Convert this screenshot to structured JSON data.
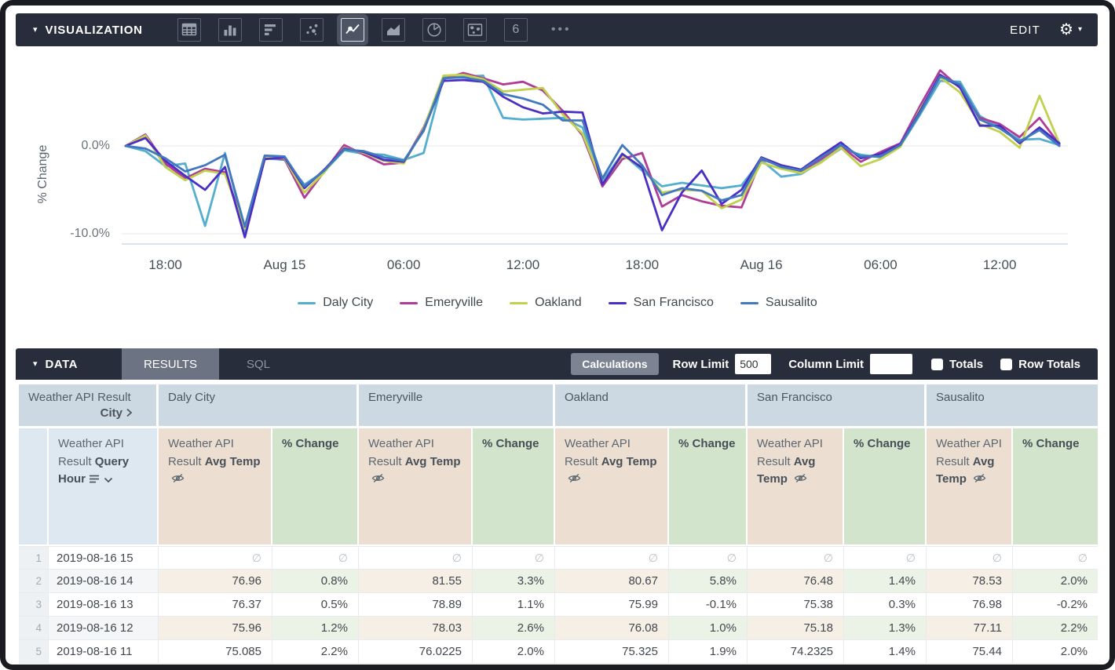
{
  "viz_bar": {
    "title": "VISUALIZATION",
    "caret_down_glyph": "▾",
    "more_glyph": "•••",
    "edit_label": "EDIT",
    "gear_glyph": "⚙",
    "single_value_text": "6",
    "icons": [
      {
        "name": "table"
      },
      {
        "name": "column-chart"
      },
      {
        "name": "bar-chart"
      },
      {
        "name": "scatter"
      },
      {
        "name": "line-chart",
        "selected": true
      },
      {
        "name": "area-chart"
      },
      {
        "name": "pie-chart"
      },
      {
        "name": "map"
      },
      {
        "name": "single-value"
      }
    ]
  },
  "chart_data": {
    "type": "line",
    "title": "",
    "xlabel": "",
    "ylabel": "% Change",
    "grid": "horizontal",
    "legend_position": "bottom",
    "ylim": [
      -12,
      9.5
    ],
    "y_ticks": [
      {
        "label": "0.0%",
        "value": 0
      },
      {
        "label": "-10.0%",
        "value": -10
      }
    ],
    "x_ticks": [
      {
        "label": "18:00",
        "i": 2
      },
      {
        "label": "Aug 15",
        "i": 8
      },
      {
        "label": "06:00",
        "i": 14
      },
      {
        "label": "12:00",
        "i": 20
      },
      {
        "label": "18:00",
        "i": 26
      },
      {
        "label": "Aug 16",
        "i": 32
      },
      {
        "label": "06:00",
        "i": 38
      },
      {
        "label": "12:00",
        "i": 44
      }
    ],
    "series": [
      {
        "name": "Daly City",
        "color": "#55AECE",
        "values": [
          0,
          -0.6,
          -2.3,
          -2.0,
          -9.1,
          -0.8,
          -9.8,
          -1.4,
          -1.6,
          -4.4,
          -2.9,
          -0.5,
          -0.9,
          -1.0,
          -1.6,
          -0.8,
          7.8,
          7.9,
          8.0,
          3.2,
          3.0,
          3.1,
          3.2,
          2.1,
          -4.0,
          -0.9,
          -2.8,
          -4.6,
          -4.2,
          -4.5,
          -4.8,
          -4.5,
          -1.6,
          -3.5,
          -3.2,
          -1.8,
          -0.3,
          -1.0,
          -1.3,
          0.0,
          3.6,
          7.4,
          7.3,
          3.4,
          2.1,
          0.7,
          0.8,
          0.1
        ]
      },
      {
        "name": "Emeryville",
        "color": "#AE3C98",
        "values": [
          0,
          1.3,
          -2.0,
          -3.7,
          -2.6,
          -3.0,
          -9.3,
          -1.3,
          -1.5,
          -5.9,
          -2.9,
          0.1,
          -1.0,
          -2.1,
          -1.9,
          2.1,
          7.6,
          8.3,
          7.7,
          7.0,
          7.3,
          6.3,
          4.0,
          1.2,
          -4.6,
          -1.5,
          -0.8,
          -6.9,
          -5.6,
          -6.3,
          -6.8,
          -7.0,
          -1.5,
          -2.3,
          -2.9,
          -1.5,
          0.0,
          -1.8,
          -0.7,
          0.3,
          4.6,
          8.6,
          6.6,
          3.2,
          2.5,
          1.0,
          3.2,
          0.2
        ]
      },
      {
        "name": "Oakland",
        "color": "#C0D14E",
        "values": [
          0,
          1.2,
          -2.4,
          -3.9,
          -2.8,
          -3.2,
          -9.4,
          -1.2,
          -1.4,
          -5.3,
          -3.0,
          -0.2,
          -0.8,
          -1.7,
          -2.0,
          2.0,
          8.0,
          8.1,
          7.6,
          6.2,
          6.4,
          6.6,
          3.6,
          1.4,
          -4.3,
          -1.1,
          -2.4,
          -5.3,
          -5.0,
          -5.1,
          -7.1,
          -6.1,
          -1.9,
          -2.6,
          -3.1,
          -1.9,
          -0.2,
          -2.3,
          -1.5,
          -0.1,
          4.2,
          7.8,
          6.1,
          2.5,
          1.6,
          -0.2,
          5.7,
          0.3
        ]
      },
      {
        "name": "San Francisco",
        "color": "#4B2FC4",
        "values": [
          0,
          0.9,
          -1.7,
          -3.4,
          -5.0,
          -2.4,
          -10.4,
          -1.5,
          -1.3,
          -4.8,
          -2.7,
          -0.3,
          -0.7,
          -1.6,
          -1.8,
          1.8,
          7.4,
          7.5,
          7.3,
          5.6,
          4.4,
          3.7,
          3.9,
          3.8,
          -4.4,
          -0.9,
          -2.5,
          -9.6,
          -5.3,
          -2.8,
          -6.6,
          -5.0,
          -1.3,
          -2.2,
          -2.7,
          -1.1,
          0.4,
          -1.4,
          -0.9,
          0.2,
          4.0,
          8.1,
          6.7,
          2.3,
          2.3,
          0.3,
          2.1,
          0.3
        ]
      },
      {
        "name": "Sausalito",
        "color": "#4278BE",
        "values": [
          0,
          -0.3,
          -1.4,
          -2.9,
          -2.2,
          -1.0,
          -9.2,
          -1.1,
          -1.2,
          -4.6,
          -2.8,
          -0.4,
          -0.6,
          -1.3,
          -1.7,
          1.7,
          7.7,
          7.8,
          7.4,
          5.9,
          5.4,
          4.7,
          2.9,
          2.9,
          -3.7,
          0.1,
          -2.2,
          -5.6,
          -4.8,
          -5.1,
          -6.2,
          -5.6,
          -1.4,
          -2.4,
          -2.8,
          -1.3,
          0.1,
          -1.2,
          -1.2,
          0.1,
          3.8,
          7.9,
          7.0,
          3.0,
          2.0,
          0.5,
          1.8,
          0.0
        ]
      }
    ]
  },
  "data_bar": {
    "title": "DATA",
    "caret_down_glyph": "▾",
    "tabs": [
      {
        "label": "RESULTS",
        "active": true
      },
      {
        "label": "SQL",
        "active": false
      }
    ],
    "calculations_label": "Calculations",
    "row_limit_label": "Row Limit",
    "row_limit_value": "500",
    "column_limit_label": "Column Limit",
    "column_limit_value": "",
    "totals_label": "Totals",
    "row_totals_label": "Row Totals"
  },
  "table": {
    "pivot_dim_label": "Weather API Result",
    "pivot_dim_bold": "City",
    "pivot_values": [
      "Daly City",
      "Emeryville",
      "Oakland",
      "San Francisco",
      "Sausalito"
    ],
    "row_dim_prefix": "Weather API Result ",
    "row_dim_bold": "Query Hour",
    "measure_prefix": "Weather API Result ",
    "measure_bold": "Avg Temp",
    "calc_label": "% Change",
    "null_symbol": "∅",
    "rows": [
      {
        "n": "1",
        "hour": "2019-08-16 15",
        "values": [
          "∅",
          "∅",
          "∅",
          "∅",
          "∅",
          "∅",
          "∅",
          "∅",
          "∅",
          "∅"
        ]
      },
      {
        "n": "2",
        "hour": "2019-08-16 14",
        "values": [
          "76.96",
          "0.8%",
          "81.55",
          "3.3%",
          "80.67",
          "5.8%",
          "76.48",
          "1.4%",
          "78.53",
          "2.0%"
        ]
      },
      {
        "n": "3",
        "hour": "2019-08-16 13",
        "values": [
          "76.37",
          "0.5%",
          "78.89",
          "1.1%",
          "75.99",
          "-0.1%",
          "75.38",
          "0.3%",
          "76.98",
          "-0.2%"
        ]
      },
      {
        "n": "4",
        "hour": "2019-08-16 12",
        "values": [
          "75.96",
          "1.2%",
          "78.03",
          "2.6%",
          "76.08",
          "1.0%",
          "75.18",
          "1.3%",
          "77.11",
          "2.2%"
        ]
      },
      {
        "n": "5",
        "hour": "2019-08-16 11",
        "values": [
          "75.085",
          "2.2%",
          "76.0225",
          "2.0%",
          "75.325",
          "1.9%",
          "74.2325",
          "1.4%",
          "75.44",
          "2.0%"
        ]
      }
    ]
  }
}
